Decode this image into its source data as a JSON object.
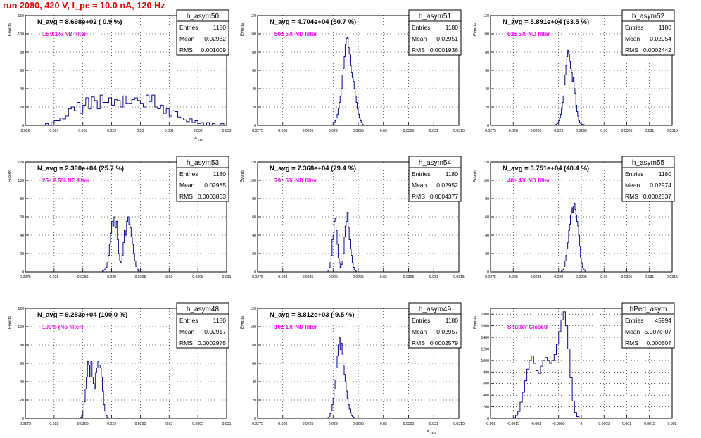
{
  "page_title": "run 2080,   420 V, I_pe ≈ 10.0 nA, 120 Hz",
  "stats_labels": {
    "entries": "Entries",
    "mean": "Mean",
    "rms": "RMS"
  },
  "chart_data": [
    {
      "type": "histogram",
      "name": "h_asym50",
      "entries": "1180",
      "mean": "0.02932",
      "rms": "0.001009",
      "annotation": "N_avg = 8.698e+02 ( 0.9 %)",
      "filter_label": "1± 0.1% ND filter",
      "xlabel": "A",
      "xlabel_sub": "LED",
      "ylabel": "Events",
      "xlim": [
        0.026,
        0.033
      ],
      "xticks": [
        0.026,
        0.027,
        0.028,
        0.029,
        0.03,
        0.031,
        0.032,
        0.033
      ],
      "xtick_labels": [
        "0.026",
        "0.027",
        "0.028",
        "0.029",
        "0.03",
        "0.031",
        "0.032",
        "0.033"
      ],
      "ylim": [
        0,
        120
      ],
      "yticks": [
        0,
        20,
        40,
        60,
        80,
        100,
        120
      ],
      "ytick_labels": [
        "0",
        "20",
        "40",
        "60",
        "80",
        "100",
        "120"
      ],
      "bin_start": 0.0267,
      "bin_width": 0.0001,
      "counts": [
        2,
        0,
        3,
        5,
        5,
        8,
        7,
        10,
        18,
        20,
        16,
        25,
        13,
        22,
        30,
        18,
        31,
        27,
        18,
        33,
        25,
        25,
        30,
        22,
        28,
        27,
        20,
        32,
        24,
        24,
        28,
        30,
        27,
        24,
        20,
        33,
        26,
        33,
        20,
        18,
        22,
        13,
        18,
        10,
        16,
        15,
        9,
        8,
        6,
        4,
        7,
        3,
        5,
        2,
        3,
        0,
        3,
        0,
        2,
        0,
        0,
        2
      ]
    },
    {
      "type": "histogram",
      "name": "h_asym51",
      "entries": "1180",
      "mean": "0.02951",
      "rms": "0.0001936",
      "annotation": "N_avg = 4.704e+04 (50.7 %)",
      "filter_label": "50± 5% ND filter",
      "xlabel": "",
      "xlabel_sub": "",
      "ylabel": "Events",
      "xlim": [
        0.0275,
        0.0315
      ],
      "xticks": [
        0.0275,
        0.028,
        0.0285,
        0.029,
        0.0295,
        0.03,
        0.0305,
        0.031,
        0.0315
      ],
      "xtick_labels": [
        "0.0275",
        "0.028",
        "0.0285",
        "0.029",
        "0.0295",
        "0.03",
        "0.0305",
        "0.031",
        "0.0315"
      ],
      "ylim": [
        0,
        120
      ],
      "yticks": [
        0,
        20,
        40,
        60,
        80,
        100,
        120
      ],
      "ytick_labels": [
        "0",
        "20",
        "40",
        "60",
        "80",
        "100",
        "120"
      ],
      "bin_start": 0.029,
      "bin_width": 2e-05,
      "counts": [
        1,
        3,
        5,
        8,
        12,
        18,
        25,
        32,
        40,
        55,
        62,
        75,
        88,
        95,
        96,
        85,
        78,
        65,
        58,
        52,
        48,
        40,
        32,
        25,
        18,
        12,
        8,
        5,
        3,
        1
      ]
    },
    {
      "type": "histogram",
      "name": "h_asym52",
      "entries": "1180",
      "mean": "0.02954",
      "rms": "0.0002442",
      "annotation": "N_avg = 5.891e+04 (63.5 %)",
      "filter_label": "63± 5% ND filter",
      "xlabel": "",
      "xlabel_sub": "",
      "ylabel": "Events",
      "xlim": [
        0.0275,
        0.0315
      ],
      "xticks": [
        0.0275,
        0.028,
        0.0285,
        0.029,
        0.0295,
        0.03,
        0.0305,
        0.031,
        0.0315
      ],
      "xtick_labels": [
        "0.0275",
        "0.028",
        "0.0285",
        "0.029",
        "0.0295",
        "0.03",
        "0.0305",
        "0.031",
        "0.0315"
      ],
      "ylim": [
        0,
        120
      ],
      "yticks": [
        0,
        20,
        40,
        60,
        80,
        100,
        120
      ],
      "ytick_labels": [
        "0",
        "20",
        "40",
        "60",
        "80",
        "100",
        "120"
      ],
      "bin_start": 0.02894,
      "bin_width": 2e-05,
      "counts": [
        1,
        2,
        3,
        5,
        8,
        12,
        18,
        25,
        32,
        45,
        55,
        65,
        75,
        82,
        78,
        70,
        62,
        58,
        48,
        52,
        40,
        35,
        22,
        15,
        10,
        5,
        3,
        2,
        1,
        1,
        1
      ]
    },
    {
      "type": "histogram",
      "name": "h_asym53",
      "entries": "1180",
      "mean": "0.02985",
      "rms": "0.0003863",
      "annotation": "N_avg = 2.390e+04 (25.7 %)",
      "filter_label": "25± 2.5% ND filter",
      "xlabel": "",
      "xlabel_sub": "",
      "ylabel": "Events",
      "xlim": [
        0.0275,
        0.031
      ],
      "xticks": [
        0.0275,
        0.028,
        0.0285,
        0.029,
        0.0295,
        0.03,
        0.0305,
        0.031
      ],
      "xtick_labels": [
        "0.0275",
        "0.028",
        "0.0285",
        "0.029",
        "0.0295",
        "0.03",
        "0.0305",
        "0.031"
      ],
      "ylim": [
        0,
        120
      ],
      "yticks": [
        0,
        20,
        40,
        60,
        80,
        100,
        120
      ],
      "ytick_labels": [
        "0",
        "20",
        "40",
        "60",
        "80",
        "100",
        "120"
      ],
      "bin_start": 0.02884,
      "bin_width": 2e-05,
      "counts": [
        1,
        2,
        3,
        5,
        10,
        18,
        30,
        42,
        55,
        50,
        60,
        48,
        55,
        35,
        20,
        12,
        10,
        18,
        32,
        45,
        40,
        55,
        60,
        52,
        48,
        38,
        30,
        20,
        12,
        6,
        3,
        1
      ]
    },
    {
      "type": "histogram",
      "name": "h_asym54",
      "entries": "1180",
      "mean": "0.02952",
      "rms": "0.0004377",
      "annotation": "N_avg = 7.368e+04 (79.4 %)",
      "filter_label": "79± 5% ND filter",
      "xlabel": "",
      "xlabel_sub": "",
      "ylabel": "Events",
      "xlim": [
        0.0275,
        0.0315
      ],
      "xticks": [
        0.0275,
        0.028,
        0.0285,
        0.029,
        0.0295,
        0.03,
        0.0305,
        0.031,
        0.0315
      ],
      "xtick_labels": [
        "0.0275",
        "0.028",
        "0.0285",
        "0.029",
        "0.0295",
        "0.03",
        "0.0305",
        "0.031",
        "0.0315"
      ],
      "ylim": [
        0,
        120
      ],
      "yticks": [
        0,
        20,
        40,
        60,
        80,
        100,
        120
      ],
      "ytick_labels": [
        "0",
        "20",
        "40",
        "60",
        "80",
        "100",
        "120"
      ],
      "bin_start": 0.0289,
      "bin_width": 2e-05,
      "counts": [
        2,
        5,
        10,
        18,
        35,
        40,
        55,
        58,
        45,
        30,
        15,
        10,
        5,
        8,
        12,
        20,
        38,
        50,
        55,
        65,
        48,
        35,
        25,
        18,
        10,
        5,
        2,
        1
      ]
    },
    {
      "type": "histogram",
      "name": "h_asym55",
      "entries": "1180",
      "mean": "0.02974",
      "rms": "0.0002537",
      "annotation": "N_avg = 3.751e+04 (40.4 %)",
      "filter_label": "40± 4% ND filter",
      "xlabel": "",
      "xlabel_sub": "",
      "ylabel": "Events",
      "xlim": [
        0.0275,
        0.0315
      ],
      "xticks": [
        0.0275,
        0.028,
        0.0285,
        0.029,
        0.0295,
        0.03,
        0.0305,
        0.031,
        0.0315
      ],
      "xtick_labels": [
        "0.0275",
        "0.028",
        "0.0285",
        "0.029",
        "0.0295",
        "0.03",
        "0.0305",
        "0.031",
        "0.0315"
      ],
      "ylim": [
        0,
        120
      ],
      "yticks": [
        0,
        20,
        40,
        60,
        80,
        100,
        120
      ],
      "ytick_labels": [
        "0",
        "20",
        "40",
        "60",
        "80",
        "100",
        "120"
      ],
      "bin_start": 0.02906,
      "bin_width": 2e-05,
      "counts": [
        1,
        2,
        3,
        6,
        12,
        18,
        25,
        32,
        45,
        52,
        62,
        70,
        65,
        72,
        75,
        68,
        62,
        55,
        50,
        40,
        28,
        15,
        10,
        5,
        3,
        2,
        1
      ]
    },
    {
      "type": "histogram",
      "name": "h_asym48",
      "entries": "1180",
      "mean": "0.02917",
      "rms": "0.0002975",
      "annotation": "N_avg = 9.283e+04 (100.0 %)",
      "filter_label": "100% (No filter)",
      "xlabel": "",
      "xlabel_sub": "",
      "ylabel": "Events",
      "xlim": [
        0.0275,
        0.031
      ],
      "xticks": [
        0.0275,
        0.028,
        0.0285,
        0.029,
        0.0295,
        0.03,
        0.0305,
        0.031
      ],
      "xtick_labels": [
        "0.0275",
        "0.028",
        "0.0285",
        "0.029",
        "0.0295",
        "0.03",
        "0.0305",
        "0.031"
      ],
      "ylim": [
        0,
        120
      ],
      "yticks": [
        0,
        20,
        40,
        60,
        80,
        100,
        120
      ],
      "ytick_labels": [
        "0",
        "20",
        "40",
        "60",
        "80",
        "100",
        "120"
      ],
      "bin_start": 0.02846,
      "bin_width": 2e-05,
      "counts": [
        1,
        3,
        8,
        18,
        32,
        45,
        62,
        58,
        45,
        62,
        45,
        38,
        32,
        50,
        55,
        62,
        58,
        55,
        45,
        30,
        15,
        8,
        3,
        1
      ]
    },
    {
      "type": "histogram",
      "name": "h_asym49",
      "entries": "1180",
      "mean": "0.02957",
      "rms": "0.0002579",
      "annotation": "N_avg = 8.812e+03 ( 9.5 %)",
      "filter_label": "10± 1% ND filter",
      "xlabel": "A",
      "xlabel_sub": "LED",
      "ylabel": "Events",
      "xlim": [
        0.0275,
        0.0315
      ],
      "xticks": [
        0.0275,
        0.028,
        0.0285,
        0.029,
        0.0295,
        0.03,
        0.0305,
        0.031,
        0.0315
      ],
      "xtick_labels": [
        "0.0275",
        "0.028",
        "0.0285",
        "0.029",
        "0.0295",
        "0.03",
        "0.0305",
        "0.031",
        "0.0315"
      ],
      "ylim": [
        0,
        120
      ],
      "yticks": [
        0,
        20,
        40,
        60,
        80,
        100,
        120
      ],
      "ytick_labels": [
        "0",
        "20",
        "40",
        "60",
        "80",
        "100",
        "120"
      ],
      "bin_start": 0.0289,
      "bin_width": 2e-05,
      "counts": [
        1,
        2,
        5,
        8,
        15,
        22,
        32,
        42,
        55,
        68,
        80,
        88,
        75,
        82,
        70,
        58,
        48,
        40,
        30,
        22,
        15,
        10,
        6,
        3,
        2,
        1
      ]
    },
    {
      "type": "histogram",
      "name": "hPed_asym",
      "entries": "45994",
      "mean": "-5.007e-07",
      "rms": "0.000507",
      "annotation": "",
      "filter_label": "Shutter Closed",
      "xlabel": "",
      "xlabel_sub": "",
      "ylabel": "Events",
      "xlim": [
        -0.002,
        0.002
      ],
      "xticks": [
        -0.002,
        -0.0015,
        -0.001,
        -0.0005,
        0,
        0.0005,
        0.001,
        0.0015,
        0.002
      ],
      "xtick_labels": [
        "-0.002",
        "-0.0015",
        "-0.001",
        "-0.0005",
        "0",
        "0.0005",
        "0.001",
        "0.0015",
        "0.002"
      ],
      "ylim": [
        0,
        1900
      ],
      "yticks": [
        0,
        200,
        400,
        600,
        800,
        1000,
        1200,
        1400,
        1600,
        1800
      ],
      "ytick_labels": [
        "0",
        "200",
        "400",
        "600",
        "800",
        "1000",
        "1200",
        "1400",
        "1600",
        "1800"
      ],
      "bin_start": -0.0015,
      "bin_width": 5e-05,
      "counts": [
        10,
        50,
        120,
        280,
        450,
        650,
        850,
        1000,
        1080,
        950,
        820,
        780,
        900,
        1000,
        1050,
        1000,
        950,
        1000,
        1100,
        1280,
        1500,
        1700,
        1840,
        1600,
        1200,
        700,
        300,
        100,
        30,
        5
      ]
    }
  ]
}
